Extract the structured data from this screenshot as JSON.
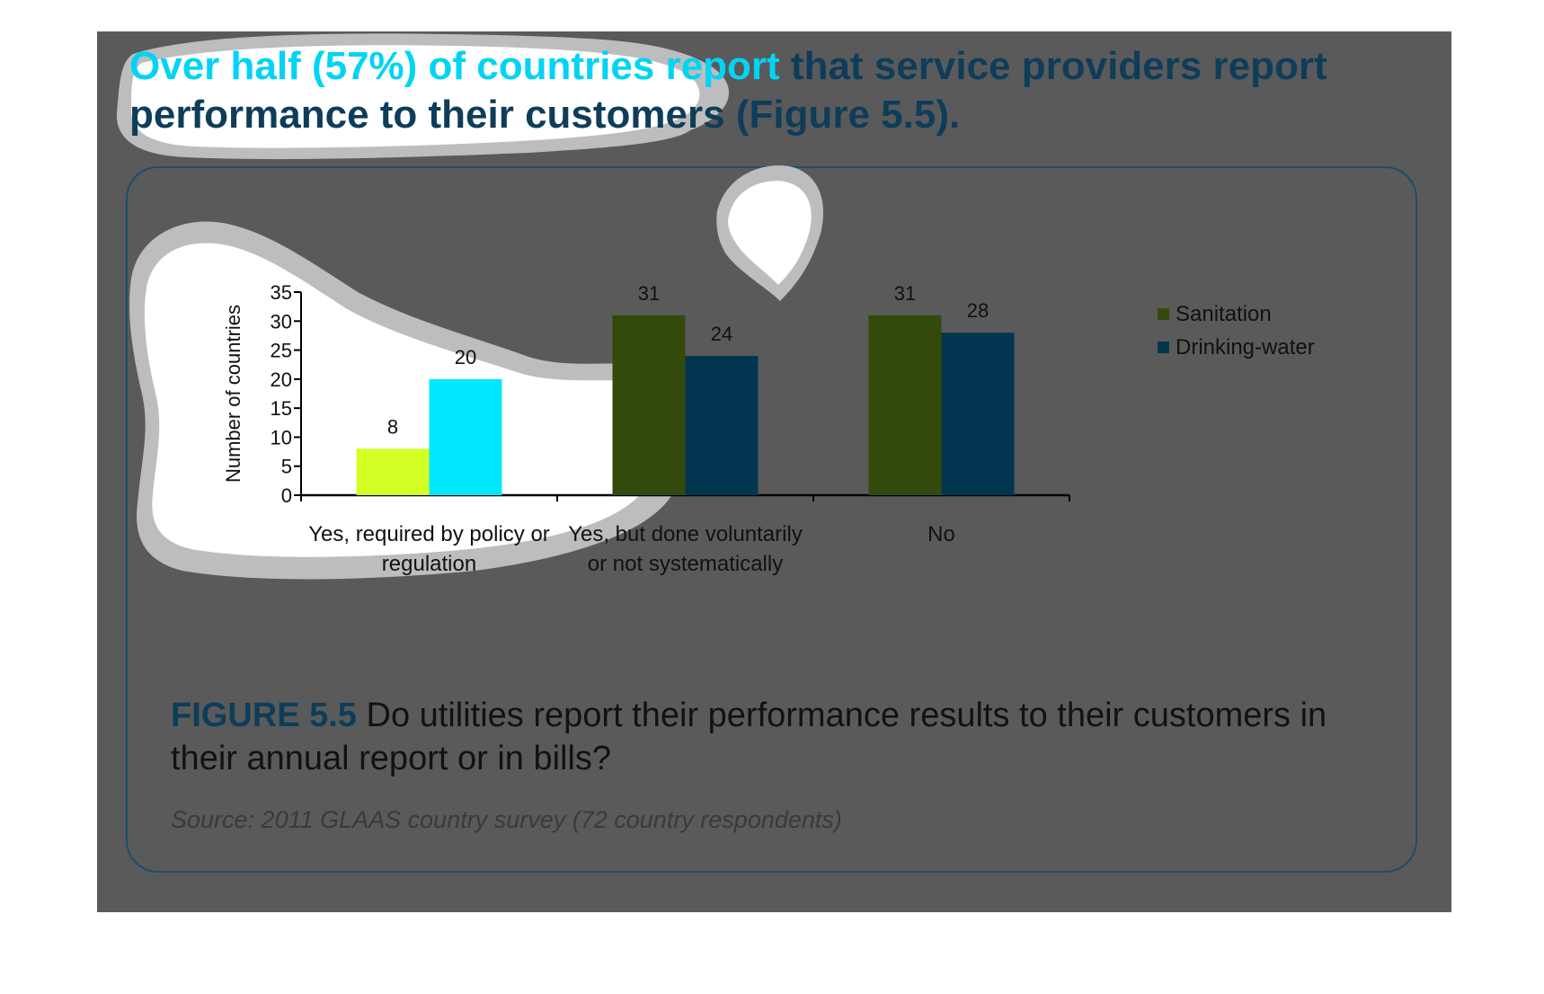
{
  "headline": "Over half (57%) of countries report that service providers report performance to their customers (Figure 5.5).",
  "caption": {
    "figure_label": "FIGURE 5.5",
    "text": "Do utilities report their performance results to their customers in their annual report or in bills?"
  },
  "source": "Source: 2011 GLAAS country survey (72 country respondents)",
  "colors": {
    "background": "#5a5a5a",
    "sanitation": "#344a0c",
    "drinking_water": "#02354f",
    "sanitation_highlight": "#d4ff24",
    "drinking_water_highlight": "#00e8ff",
    "headline_highlight": "#00d4f5"
  },
  "chart_data": {
    "type": "bar",
    "categories": [
      "Yes, required by policy or regulation",
      "Yes, but done voluntarily or not systematically",
      "No"
    ],
    "category_label_lines": [
      [
        "Yes, required by policy or",
        "regulation"
      ],
      [
        "Yes, but done voluntarily",
        "or not systematically"
      ],
      [
        "No"
      ]
    ],
    "series": [
      {
        "name": "Sanitation",
        "values": [
          8,
          31,
          31
        ]
      },
      {
        "name": "Drinking-water",
        "values": [
          20,
          24,
          28
        ]
      }
    ],
    "ylabel": "Number of countries",
    "ylim": [
      0,
      35
    ],
    "yticks": [
      0,
      5,
      10,
      15,
      20,
      25,
      30,
      35
    ],
    "data_labels": true,
    "legend_position": "right",
    "grid": false
  }
}
